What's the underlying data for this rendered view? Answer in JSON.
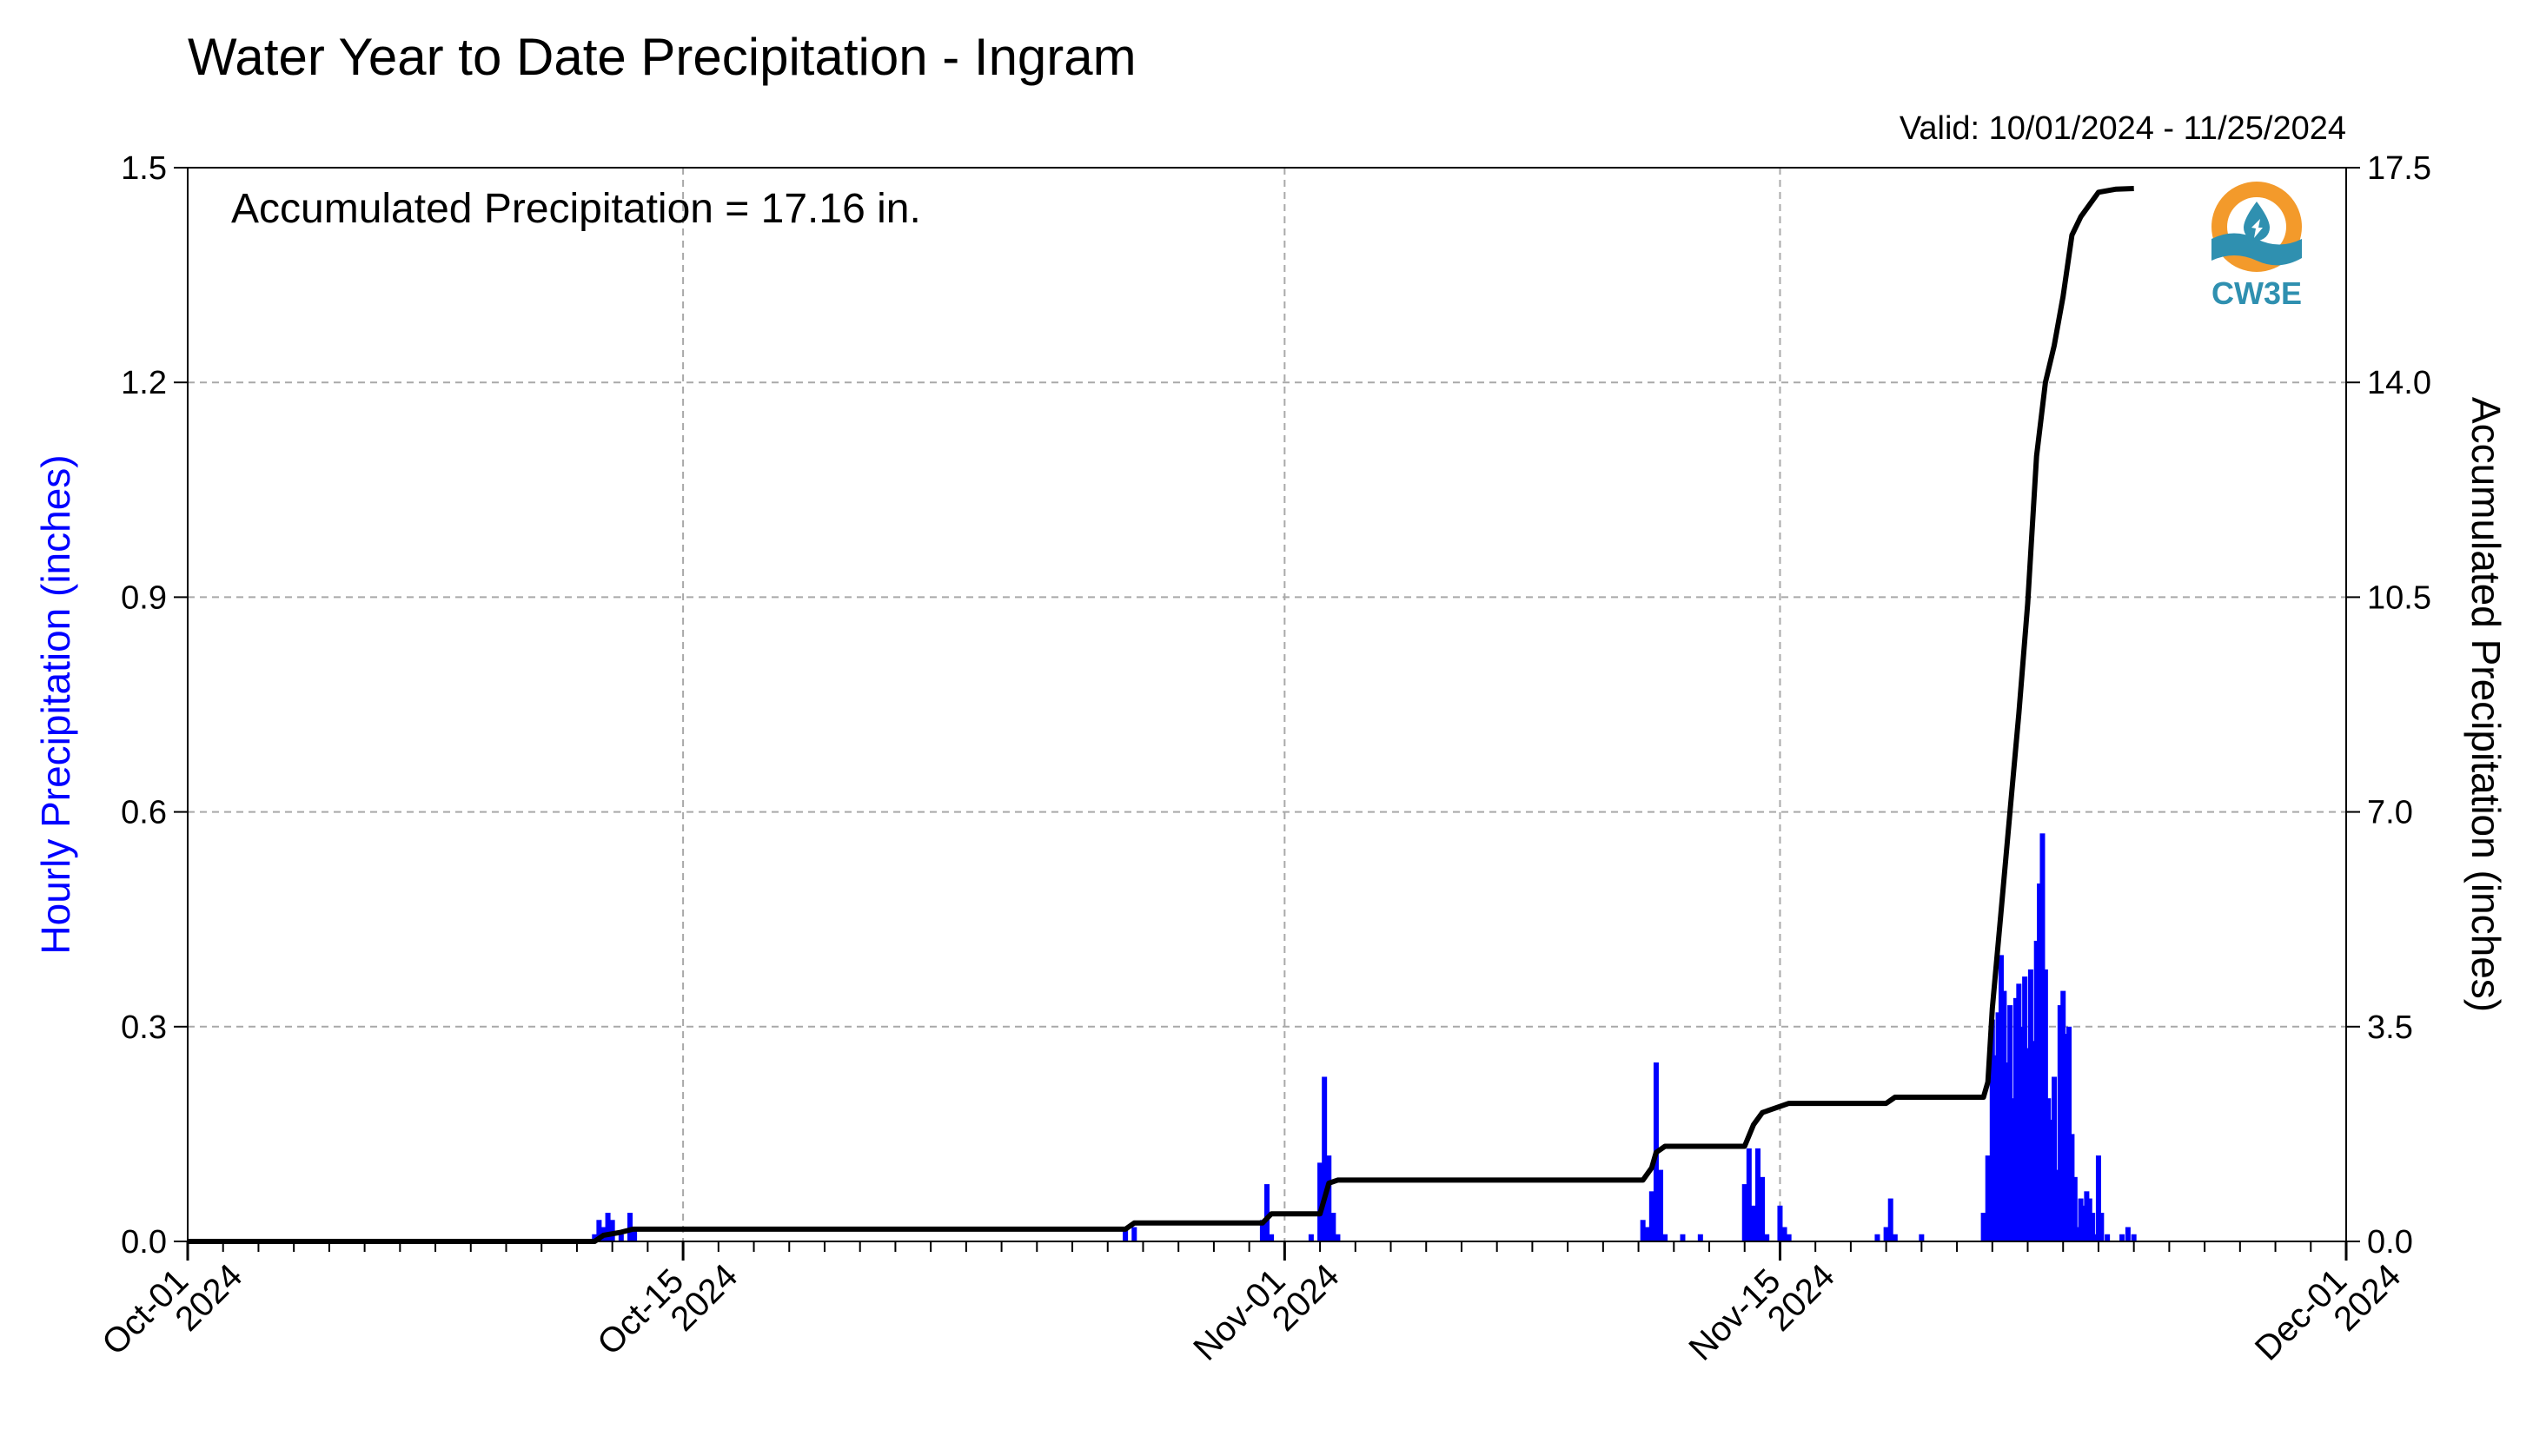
{
  "colors": {
    "hourly": "#0000ff",
    "accum": "#000000",
    "grid": "#a9a9a9",
    "logo_orange": "#f39a2b",
    "logo_teal": "#2f90b0"
  },
  "chart_data": {
    "type": "bar",
    "title": "Water Year to Date Precipitation - Ingram",
    "subtitle": "Valid: 10/01/2024 - 11/25/2024",
    "annotation": "Accumulated Precipitation = 17.16 in.",
    "logo_text": "CW3E",
    "logo_icon": "water-drop-sun-logo",
    "ylabel_left": "Hourly Precipitation (inches)",
    "ylabel_right": "Accumulated Precipitation (inches)",
    "ylim_left": [
      0,
      1.5
    ],
    "ylim_right": [
      0,
      17.5
    ],
    "xlim": [
      "2024-10-01",
      "2024-12-01"
    ],
    "y_ticks_left": [
      "0.0",
      "0.3",
      "0.6",
      "0.9",
      "1.2",
      "1.5"
    ],
    "y_ticks_right": [
      "0.0",
      "3.5",
      "7.0",
      "10.5",
      "14.0",
      "17.5"
    ],
    "x_ticks": [
      {
        "date": "2024-10-01",
        "label1": "Oct-01",
        "label2": "2024"
      },
      {
        "date": "2024-10-15",
        "label1": "Oct-15",
        "label2": "2024"
      },
      {
        "date": "2024-11-01",
        "label1": "Nov-01",
        "label2": "2024"
      },
      {
        "date": "2024-11-15",
        "label1": "Nov-15",
        "label2": "2024"
      },
      {
        "date": "2024-12-01",
        "label1": "Dec-01",
        "label2": "2024"
      }
    ],
    "grid": true,
    "series": [
      {
        "name": "Hourly Precipitation (inches)",
        "type": "bar",
        "axis": "left",
        "points": [
          [
            "2024-10-12T12:00",
            0.01
          ],
          [
            "2024-10-12T15:00",
            0.03
          ],
          [
            "2024-10-12T18:00",
            0.02
          ],
          [
            "2024-10-12T21:00",
            0.04
          ],
          [
            "2024-10-13T00:00",
            0.03
          ],
          [
            "2024-10-13T06:00",
            0.01
          ],
          [
            "2024-10-13T12:00",
            0.04
          ],
          [
            "2024-10-13T15:00",
            0.02
          ],
          [
            "2024-10-27T12:00",
            0.02
          ],
          [
            "2024-10-27T18:00",
            0.02
          ],
          [
            "2024-10-31T09:00",
            0.03
          ],
          [
            "2024-10-31T12:00",
            0.08
          ],
          [
            "2024-10-31T15:00",
            0.01
          ],
          [
            "2024-11-01T18:00",
            0.01
          ],
          [
            "2024-11-02T00:00",
            0.11
          ],
          [
            "2024-11-02T03:00",
            0.23
          ],
          [
            "2024-11-02T06:00",
            0.12
          ],
          [
            "2024-11-02T09:00",
            0.04
          ],
          [
            "2024-11-02T12:00",
            0.01
          ],
          [
            "2024-11-11T03:00",
            0.03
          ],
          [
            "2024-11-11T06:00",
            0.02
          ],
          [
            "2024-11-11T09:00",
            0.07
          ],
          [
            "2024-11-11T12:00",
            0.25
          ],
          [
            "2024-11-11T15:00",
            0.1
          ],
          [
            "2024-11-11T18:00",
            0.01
          ],
          [
            "2024-11-12T06:00",
            0.01
          ],
          [
            "2024-11-12T18:00",
            0.01
          ],
          [
            "2024-11-14T00:00",
            0.08
          ],
          [
            "2024-11-14T03:00",
            0.13
          ],
          [
            "2024-11-14T06:00",
            0.05
          ],
          [
            "2024-11-14T09:00",
            0.13
          ],
          [
            "2024-11-14T12:00",
            0.09
          ],
          [
            "2024-11-14T15:00",
            0.01
          ],
          [
            "2024-11-15T00:00",
            0.05
          ],
          [
            "2024-11-15T03:00",
            0.02
          ],
          [
            "2024-11-15T06:00",
            0.01
          ],
          [
            "2024-11-17T18:00",
            0.01
          ],
          [
            "2024-11-18T00:00",
            0.02
          ],
          [
            "2024-11-18T03:00",
            0.06
          ],
          [
            "2024-11-18T06:00",
            0.01
          ],
          [
            "2024-11-19T00:00",
            0.01
          ],
          [
            "2024-11-20T18:00",
            0.04
          ],
          [
            "2024-11-20T21:00",
            0.12
          ],
          [
            "2024-11-21T00:00",
            0.31
          ],
          [
            "2024-11-21T02:00",
            0.26
          ],
          [
            "2024-11-21T04:00",
            0.32
          ],
          [
            "2024-11-21T06:00",
            0.4
          ],
          [
            "2024-11-21T08:00",
            0.35
          ],
          [
            "2024-11-21T10:00",
            0.25
          ],
          [
            "2024-11-21T12:00",
            0.33
          ],
          [
            "2024-11-21T14:00",
            0.2
          ],
          [
            "2024-11-21T16:00",
            0.34
          ],
          [
            "2024-11-21T18:00",
            0.36
          ],
          [
            "2024-11-21T20:00",
            0.3
          ],
          [
            "2024-11-21T22:00",
            0.37
          ],
          [
            "2024-11-22T00:00",
            0.27
          ],
          [
            "2024-11-22T02:00",
            0.38
          ],
          [
            "2024-11-22T04:00",
            0.28
          ],
          [
            "2024-11-22T06:00",
            0.42
          ],
          [
            "2024-11-22T08:00",
            0.5
          ],
          [
            "2024-11-22T10:00",
            0.57
          ],
          [
            "2024-11-22T12:00",
            0.38
          ],
          [
            "2024-11-22T14:00",
            0.2
          ],
          [
            "2024-11-22T16:00",
            0.17
          ],
          [
            "2024-11-22T18:00",
            0.23
          ],
          [
            "2024-11-22T20:00",
            0.1
          ],
          [
            "2024-11-22T22:00",
            0.33
          ],
          [
            "2024-11-23T00:00",
            0.35
          ],
          [
            "2024-11-23T02:00",
            0.29
          ],
          [
            "2024-11-23T04:00",
            0.3
          ],
          [
            "2024-11-23T06:00",
            0.15
          ],
          [
            "2024-11-23T08:00",
            0.09
          ],
          [
            "2024-11-23T10:00",
            0.02
          ],
          [
            "2024-11-23T12:00",
            0.06
          ],
          [
            "2024-11-23T14:00",
            0.05
          ],
          [
            "2024-11-23T16:00",
            0.07
          ],
          [
            "2024-11-23T18:00",
            0.06
          ],
          [
            "2024-11-23T20:00",
            0.04
          ],
          [
            "2024-11-23T22:00",
            0.01
          ],
          [
            "2024-11-24T00:00",
            0.12
          ],
          [
            "2024-11-24T02:00",
            0.04
          ],
          [
            "2024-11-24T06:00",
            0.01
          ],
          [
            "2024-11-24T16:00",
            0.01
          ],
          [
            "2024-11-24T20:00",
            0.02
          ],
          [
            "2024-11-25T00:00",
            0.01
          ]
        ]
      },
      {
        "name": "Accumulated Precipitation (inches)",
        "type": "line",
        "axis": "right",
        "points": [
          [
            "2024-10-01T00:00",
            0.0
          ],
          [
            "2024-10-12T12:00",
            0.0
          ],
          [
            "2024-10-12T18:00",
            0.1
          ],
          [
            "2024-10-13T06:00",
            0.15
          ],
          [
            "2024-10-13T14:00",
            0.2
          ],
          [
            "2024-10-27T12:00",
            0.2
          ],
          [
            "2024-10-27T18:00",
            0.3
          ],
          [
            "2024-10-31T09:00",
            0.3
          ],
          [
            "2024-10-31T15:00",
            0.45
          ],
          [
            "2024-11-02T00:00",
            0.45
          ],
          [
            "2024-11-02T03:00",
            0.7
          ],
          [
            "2024-11-02T06:00",
            0.95
          ],
          [
            "2024-11-02T12:00",
            1.0
          ],
          [
            "2024-11-11T03:00",
            1.0
          ],
          [
            "2024-11-11T09:00",
            1.2
          ],
          [
            "2024-11-11T12:00",
            1.45
          ],
          [
            "2024-11-11T18:00",
            1.55
          ],
          [
            "2024-11-14T00:00",
            1.55
          ],
          [
            "2024-11-14T06:00",
            1.9
          ],
          [
            "2024-11-14T12:00",
            2.1
          ],
          [
            "2024-11-15T00:00",
            2.2
          ],
          [
            "2024-11-15T06:00",
            2.25
          ],
          [
            "2024-11-18T00:00",
            2.25
          ],
          [
            "2024-11-18T06:00",
            2.35
          ],
          [
            "2024-11-20T18:00",
            2.35
          ],
          [
            "2024-11-20T21:00",
            2.6
          ],
          [
            "2024-11-21T00:00",
            3.8
          ],
          [
            "2024-11-21T06:00",
            5.4
          ],
          [
            "2024-11-21T12:00",
            7.0
          ],
          [
            "2024-11-21T18:00",
            8.6
          ],
          [
            "2024-11-22T00:00",
            10.4
          ],
          [
            "2024-11-22T06:00",
            12.8
          ],
          [
            "2024-11-22T12:00",
            14.0
          ],
          [
            "2024-11-22T18:00",
            14.6
          ],
          [
            "2024-11-23T00:00",
            15.4
          ],
          [
            "2024-11-23T06:00",
            16.4
          ],
          [
            "2024-11-23T12:00",
            16.7
          ],
          [
            "2024-11-23T18:00",
            16.9
          ],
          [
            "2024-11-24T00:00",
            17.1
          ],
          [
            "2024-11-24T12:00",
            17.15
          ],
          [
            "2024-11-25T00:00",
            17.16
          ]
        ]
      }
    ]
  }
}
